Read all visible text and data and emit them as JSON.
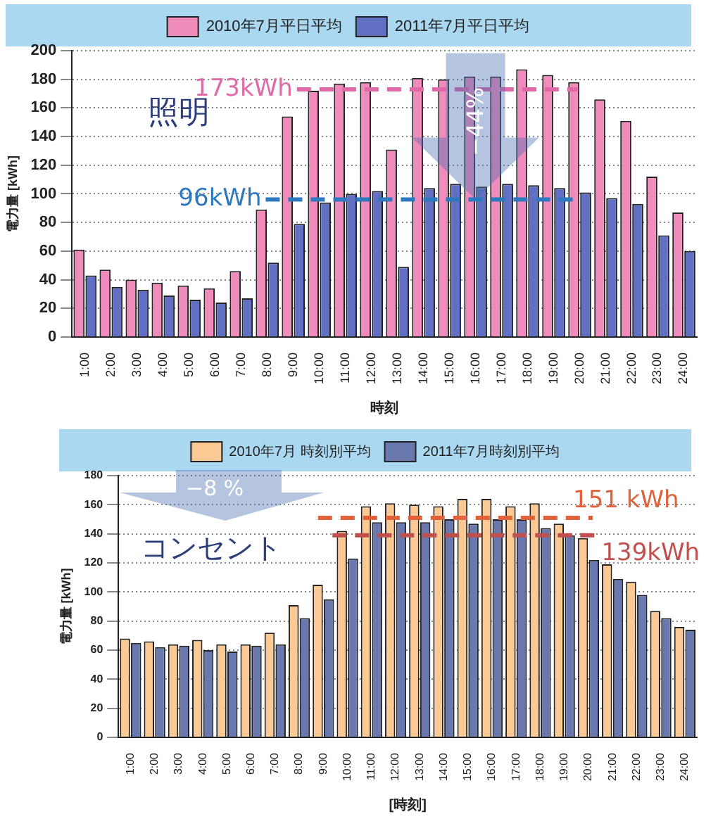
{
  "chart_data": [
    {
      "type": "bar",
      "xlabel": "時刻",
      "ylabel": "電力量 [kWh]",
      "categories": [
        "1:00",
        "2:00",
        "3:00",
        "4:00",
        "5:00",
        "6:00",
        "7:00",
        "8:00",
        "9:00",
        "10:00",
        "11:00",
        "12:00",
        "13:00",
        "14:00",
        "15:00",
        "16:00",
        "17:00",
        "18:00",
        "19:00",
        "20:00",
        "21:00",
        "22:00",
        "23:00",
        "24:00"
      ],
      "series": [
        {
          "name": "2010年7月平日平均",
          "color": "#f08cbc",
          "values": [
            61,
            47,
            40,
            38,
            36,
            34,
            46,
            89,
            154,
            172,
            177,
            178,
            131,
            181,
            180,
            182,
            182,
            187,
            183,
            178,
            166,
            151,
            112,
            87
          ]
        },
        {
          "name": "2011年7月平日平均",
          "color": "#6270c4",
          "values": [
            43,
            35,
            33,
            29,
            26,
            24,
            27,
            52,
            79,
            94,
            100,
            102,
            49,
            104,
            107,
            105,
            107,
            106,
            104,
            101,
            97,
            93,
            71,
            60
          ]
        }
      ],
      "ylim": [
        0,
        200
      ],
      "yticks": [
        0,
        20,
        40,
        60,
        80,
        100,
        120,
        140,
        160,
        180,
        200
      ],
      "grid": "y",
      "legend": "top",
      "ref_lines": [
        {
          "axis": "y",
          "value": 173,
          "label": "173kWh",
          "color": "#e06aa8",
          "line_style": "dashed"
        },
        {
          "axis": "y",
          "value": 96,
          "label": "96kWh",
          "color": "#2e78c0",
          "line_style": "dashed"
        }
      ],
      "annotations": [
        "照明",
        {
          "text": "−44%",
          "x": "16:00",
          "y": 96
        }
      ]
    },
    {
      "type": "bar",
      "xlabel": "[時刻]",
      "ylabel": "電力量 [kWh]",
      "categories": [
        "1:00",
        "2:00",
        "3:00",
        "4:00",
        "5:00",
        "6:00",
        "7:00",
        "8:00",
        "9:00",
        "10:00",
        "11:00",
        "12:00",
        "13:00",
        "14:00",
        "15:00",
        "16:00",
        "17:00",
        "18:00",
        "19:00",
        "20:00",
        "21:00",
        "22:00",
        "23:00",
        "24:00"
      ],
      "series": [
        {
          "name": "2010年7月 時刻別平均",
          "color": "#fbc994",
          "values": [
            68,
            66,
            64,
            67,
            64,
            64,
            72,
            91,
            105,
            142,
            159,
            161,
            160,
            159,
            164,
            164,
            159,
            161,
            147,
            137,
            119,
            107,
            87,
            76
          ]
        },
        {
          "name": "2011年7月時刻別平均",
          "color": "#6a78b0",
          "values": [
            65,
            62,
            63,
            60,
            59,
            63,
            64,
            82,
            95,
            123,
            148,
            148,
            148,
            150,
            147,
            150,
            150,
            144,
            139,
            122,
            109,
            98,
            82,
            74
          ]
        }
      ],
      "ylim": [
        0,
        180
      ],
      "yticks": [
        0,
        20,
        40,
        60,
        80,
        100,
        120,
        140,
        160,
        180
      ],
      "grid": "y",
      "legend": "top",
      "ref_lines": [
        {
          "axis": "y",
          "value": 151,
          "label": "151 kWh",
          "color": "#e0623a",
          "line_style": "dashed"
        },
        {
          "axis": "y",
          "value": 139,
          "label": "139kWh",
          "color": "#c0504d",
          "line_style": "dashed"
        }
      ],
      "annotations": [
        "コンセント",
        "−8 %"
      ]
    }
  ]
}
